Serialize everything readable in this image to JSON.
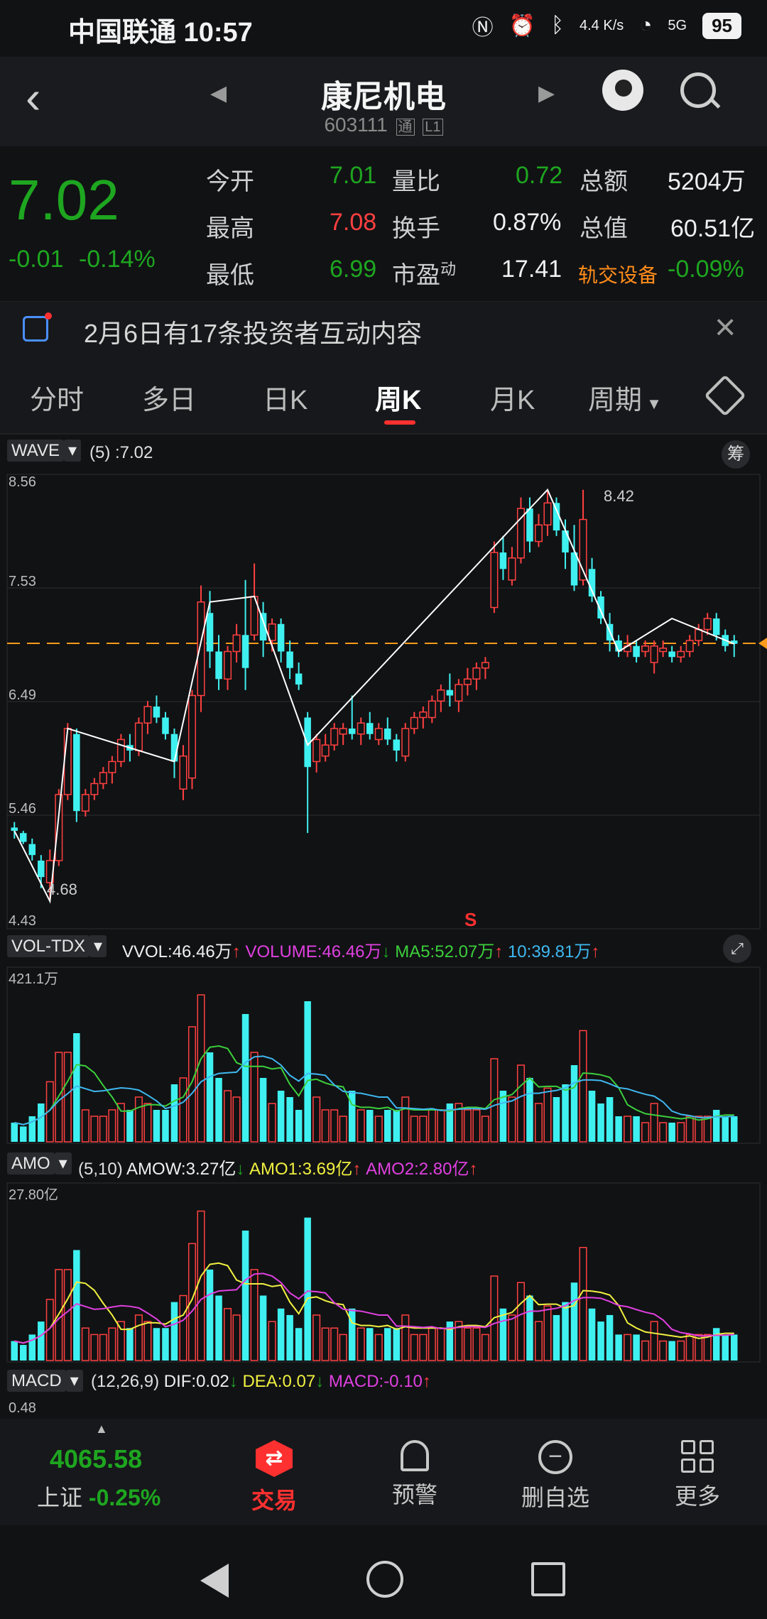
{
  "status": {
    "carrier_time": "中国联通 10:57",
    "net_speed": "4.4 K/s",
    "signal": "5G",
    "battery": "95"
  },
  "header": {
    "title": "康尼机电",
    "code": "603111",
    "tag1": "通",
    "tag2": "L1"
  },
  "quote": {
    "price": "7.02",
    "change": "-0.01",
    "change_pct": "-0.14%",
    "open_label": "今开",
    "open": "7.01",
    "high_label": "最高",
    "high": "7.08",
    "low_label": "最低",
    "low": "6.99",
    "vol_ratio_label": "量比",
    "vol_ratio": "0.72",
    "turnover_label": "换手",
    "turnover": "0.87%",
    "pe_label": "市盈",
    "pe_sup": "动",
    "pe": "17.41",
    "amount_label": "总额",
    "amount": "5204万",
    "mktcap_label": "总值",
    "mktcap": "60.51亿",
    "sector": "轨交设备",
    "sector_pct": "-0.09%"
  },
  "notice": {
    "text": "2月6日有17条投资者互动内容"
  },
  "tabs": [
    "分时",
    "多日",
    "日K",
    "周K",
    "月K",
    "周期"
  ],
  "wave": {
    "name": "WAVE",
    "value": "(5) :7.02",
    "chip": "筹",
    "axis": [
      "8.56",
      "7.53",
      "6.49",
      "5.46",
      "4.43"
    ],
    "high_mark": "8.42",
    "low_mark": "4.68",
    "signal": "S"
  },
  "vol": {
    "name": "VOL-TDX",
    "vvol": "VVOL:46.46万",
    "volume": "VOLUME:46.46万",
    "ma5": "MA5:52.07万",
    "ma10": "10:39.81万",
    "axis_top": "421.1万"
  },
  "amo": {
    "name": "AMO",
    "params": "(5,10)",
    "amow": "AMOW:3.27亿",
    "amo1": "AMO1:3.69亿",
    "amo2": "AMO2:2.80亿",
    "axis_top": "27.80亿"
  },
  "macd": {
    "name": "MACD",
    "params": "(12,26,9)",
    "dif": "DIF:0.02",
    "dea": "DEA:0.07",
    "macd": "MACD:-0.10",
    "axis_top": "0.48"
  },
  "bottom": {
    "index_value": "4065.58",
    "index_name": "上证",
    "index_pct": "-0.25%",
    "trade": "交易",
    "alert": "预警",
    "remove": "删自选",
    "more": "更多"
  },
  "colors": {
    "up": "#ff4040",
    "down": "#1ea620",
    "cyan": "#3ff0f0",
    "accent": "#ff3030"
  },
  "chart_data": {
    "type": "candlestick",
    "title": "周K",
    "ylim": [
      4.43,
      8.56
    ],
    "ohlc": [
      [
        5.35,
        5.4,
        5.25,
        5.32
      ],
      [
        5.3,
        5.32,
        5.2,
        5.22
      ],
      [
        5.2,
        5.25,
        5.05,
        5.1
      ],
      [
        5.05,
        5.1,
        4.8,
        4.9
      ],
      [
        4.85,
        5.15,
        4.68,
        5.05
      ],
      [
        5.05,
        5.7,
        5.0,
        5.65
      ],
      [
        5.65,
        6.3,
        5.6,
        6.25
      ],
      [
        6.2,
        6.25,
        5.4,
        5.5
      ],
      [
        5.5,
        5.7,
        5.45,
        5.65
      ],
      [
        5.65,
        5.8,
        5.6,
        5.75
      ],
      [
        5.75,
        5.9,
        5.7,
        5.85
      ],
      [
        5.85,
        6.0,
        5.75,
        5.95
      ],
      [
        5.95,
        6.2,
        5.9,
        6.15
      ],
      [
        6.1,
        6.2,
        5.95,
        6.05
      ],
      [
        6.05,
        6.35,
        6.0,
        6.3
      ],
      [
        6.3,
        6.5,
        6.2,
        6.45
      ],
      [
        6.45,
        6.55,
        6.3,
        6.35
      ],
      [
        6.35,
        6.4,
        6.15,
        6.2
      ],
      [
        6.2,
        6.25,
        5.8,
        5.95
      ],
      [
        5.7,
        6.1,
        5.6,
        6.0
      ],
      [
        5.8,
        6.6,
        5.7,
        6.55
      ],
      [
        6.55,
        7.55,
        6.4,
        7.4
      ],
      [
        7.3,
        7.5,
        6.8,
        6.95
      ],
      [
        6.95,
        7.1,
        6.6,
        6.7
      ],
      [
        6.7,
        7.0,
        6.6,
        6.95
      ],
      [
        6.95,
        7.2,
        6.85,
        7.1
      ],
      [
        7.1,
        7.6,
        6.6,
        6.8
      ],
      [
        7.1,
        7.75,
        7.05,
        7.45
      ],
      [
        7.3,
        7.4,
        6.9,
        7.05
      ],
      [
        7.05,
        7.25,
        6.95,
        7.2
      ],
      [
        7.2,
        7.25,
        6.85,
        6.95
      ],
      [
        6.95,
        7.05,
        6.7,
        6.8
      ],
      [
        6.75,
        6.85,
        6.6,
        6.65
      ],
      [
        6.35,
        6.4,
        5.3,
        5.9
      ],
      [
        5.95,
        6.2,
        5.85,
        6.15
      ],
      [
        6.0,
        6.2,
        5.95,
        6.1
      ],
      [
        6.1,
        6.3,
        6.05,
        6.25
      ],
      [
        6.2,
        6.3,
        6.1,
        6.25
      ],
      [
        6.25,
        6.55,
        6.15,
        6.2
      ],
      [
        6.2,
        6.35,
        6.1,
        6.3
      ],
      [
        6.3,
        6.4,
        6.15,
        6.2
      ],
      [
        6.15,
        6.3,
        6.1,
        6.25
      ],
      [
        6.25,
        6.35,
        6.1,
        6.15
      ],
      [
        6.15,
        6.2,
        5.95,
        6.05
      ],
      [
        6.0,
        6.3,
        5.95,
        6.25
      ],
      [
        6.25,
        6.4,
        6.2,
        6.35
      ],
      [
        6.35,
        6.45,
        6.25,
        6.4
      ],
      [
        6.35,
        6.55,
        6.3,
        6.5
      ],
      [
        6.5,
        6.65,
        6.4,
        6.6
      ],
      [
        6.6,
        6.75,
        6.45,
        6.55
      ],
      [
        6.5,
        6.7,
        6.4,
        6.65
      ],
      [
        6.65,
        6.8,
        6.55,
        6.7
      ],
      [
        6.7,
        6.85,
        6.6,
        6.8
      ],
      [
        6.8,
        6.9,
        6.7,
        6.85
      ],
      [
        7.35,
        7.95,
        7.3,
        7.85
      ],
      [
        7.85,
        8.0,
        7.6,
        7.7
      ],
      [
        7.6,
        7.9,
        7.55,
        7.8
      ],
      [
        7.8,
        8.35,
        7.75,
        8.25
      ],
      [
        8.25,
        8.35,
        7.85,
        7.95
      ],
      [
        7.95,
        8.2,
        7.9,
        8.1
      ],
      [
        8.1,
        8.42,
        8.0,
        8.3
      ],
      [
        8.3,
        8.35,
        8.0,
        8.05
      ],
      [
        8.05,
        8.15,
        7.7,
        7.85
      ],
      [
        7.85,
        8.1,
        7.5,
        7.55
      ],
      [
        7.6,
        8.42,
        7.55,
        8.15
      ],
      [
        7.7,
        7.8,
        7.4,
        7.45
      ],
      [
        7.45,
        7.5,
        7.2,
        7.25
      ],
      [
        7.2,
        7.3,
        6.95,
        7.05
      ],
      [
        7.05,
        7.1,
        6.9,
        6.95
      ],
      [
        6.95,
        7.1,
        6.9,
        7.0
      ],
      [
        7.0,
        7.05,
        6.85,
        6.9
      ],
      [
        6.95,
        7.05,
        6.9,
        7.0
      ],
      [
        6.85,
        7.05,
        6.75,
        7.0
      ],
      [
        6.95,
        7.05,
        6.9,
        6.98
      ],
      [
        6.95,
        7.0,
        6.85,
        6.9
      ],
      [
        6.9,
        7.0,
        6.85,
        6.95
      ],
      [
        6.95,
        7.1,
        6.9,
        7.05
      ],
      [
        7.05,
        7.2,
        7.0,
        7.15
      ],
      [
        7.15,
        7.3,
        7.1,
        7.25
      ],
      [
        7.25,
        7.3,
        7.05,
        7.1
      ],
      [
        7.1,
        7.15,
        6.95,
        7.0
      ],
      [
        7.05,
        7.1,
        6.9,
        7.02
      ]
    ],
    "wave_line": [
      [
        0,
        5.32
      ],
      [
        4,
        4.68
      ],
      [
        6,
        6.25
      ],
      [
        18,
        5.95
      ],
      [
        22,
        7.4
      ],
      [
        27,
        7.45
      ],
      [
        33,
        6.1
      ],
      [
        60,
        8.42
      ],
      [
        68,
        6.95
      ],
      [
        74,
        7.25
      ],
      [
        81,
        7.02
      ]
    ],
    "volume_ylim": [
      0,
      421.1
    ],
    "amo_ylim": [
      0,
      27.8
    ]
  }
}
